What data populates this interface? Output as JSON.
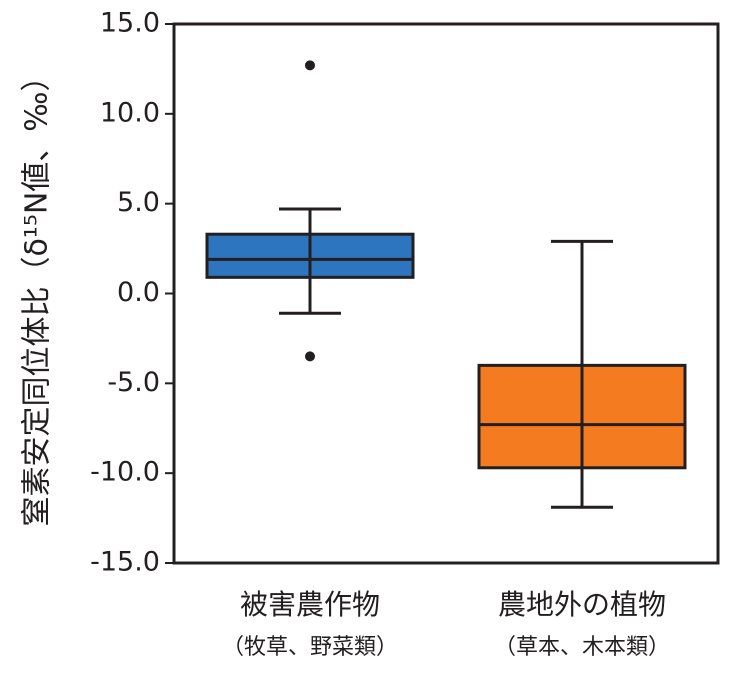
{
  "chart_data": {
    "type": "box",
    "title": "",
    "xlabel": "",
    "ylabel": "窒素安定同位体比（δ¹⁵N値、‰）",
    "ylim": [
      -15.0,
      15.0
    ],
    "yticks": [
      "15.0",
      "10.0",
      "5.0",
      "0.0",
      "-5.0",
      "-10.0",
      "-15.0"
    ],
    "grid": false,
    "legend": "none",
    "categories": [
      {
        "label": "被害農作物",
        "sublabel": "（牧草、野菜類）"
      },
      {
        "label": "農地外の植物",
        "sublabel": "（草本、木本類）"
      }
    ],
    "series": [
      {
        "whisker_low": -1.1,
        "q1": 0.9,
        "median": 1.9,
        "q3": 3.3,
        "whisker_high": 4.7,
        "outliers": [
          12.7,
          -3.5
        ],
        "color": "#2e75c0"
      },
      {
        "whisker_low": -11.9,
        "q1": -9.7,
        "median": -7.3,
        "q3": -4.0,
        "whisker_high": 2.9,
        "outliers": [],
        "color": "#f47b20"
      }
    ]
  }
}
